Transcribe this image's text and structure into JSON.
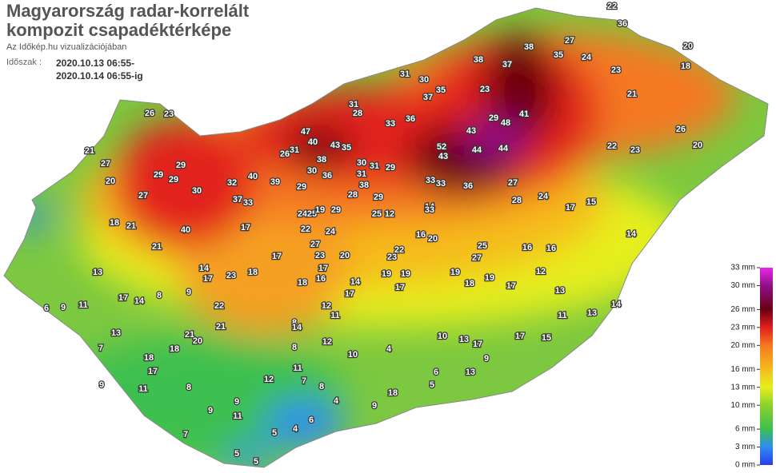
{
  "header": {
    "title_line1": "Magyarország radar-korrelált",
    "title_line2": "kompozit csapadéktérképe",
    "subtitle": "Az Időkép.hu vizualizációjában",
    "period_label": "Időszak :",
    "period_from": "2020.10.13 06:55-",
    "period_to": "2020.10.14 06:55-ig"
  },
  "legend": {
    "ticks": [
      {
        "value": 0,
        "label": "0 mm"
      },
      {
        "value": 3,
        "label": "3 mm"
      },
      {
        "value": 6,
        "label": "6 mm"
      },
      {
        "value": 10,
        "label": "10 mm"
      },
      {
        "value": 13,
        "label": "13 mm"
      },
      {
        "value": 16,
        "label": "16 mm"
      },
      {
        "value": 20,
        "label": "20 mm"
      },
      {
        "value": 23,
        "label": "23 mm"
      },
      {
        "value": 26,
        "label": "26 mm"
      },
      {
        "value": 30,
        "label": "30 mm"
      },
      {
        "value": 33,
        "label": "33 mm"
      }
    ],
    "colors": [
      "#2a3cf0",
      "#2f8cf0",
      "#3cc050",
      "#8ad22c",
      "#e6ef1c",
      "#f5bc1c",
      "#f57820",
      "#e2201c",
      "#6a0010",
      "#90108a",
      "#e828e8"
    ]
  },
  "stations": {
    "values": [
      26,
      23,
      21,
      27,
      20,
      29,
      29,
      29,
      30,
      27,
      18,
      21,
      40,
      21,
      32,
      37,
      33,
      40,
      39,
      30,
      38,
      40,
      47,
      43,
      35,
      31,
      28,
      33,
      36,
      37,
      30,
      31,
      35,
      23,
      38,
      37,
      38,
      27,
      35,
      24,
      23,
      22,
      36,
      21,
      18,
      20,
      26,
      22,
      23,
      20,
      41,
      48,
      29,
      43,
      44,
      44,
      52,
      43,
      33,
      33,
      36,
      27,
      28,
      24,
      17,
      15,
      14,
      16,
      12,
      13,
      14,
      11,
      13,
      17,
      15,
      10,
      13,
      9,
      13,
      6,
      5,
      4,
      10,
      8,
      11,
      7,
      8,
      4,
      9,
      18,
      6,
      4,
      5,
      5,
      5,
      7,
      11,
      9,
      9,
      12,
      8,
      11,
      17,
      18,
      21,
      20,
      18,
      13,
      7,
      9,
      6,
      9,
      11,
      13,
      17,
      14,
      8,
      9,
      22,
      21,
      23,
      17,
      14,
      18,
      16,
      17,
      14,
      17,
      12,
      11,
      8,
      14,
      12,
      19,
      19,
      17,
      18,
      19,
      19,
      17,
      17,
      16,
      25,
      27,
      22,
      23,
      16,
      20,
      25,
      12,
      14,
      20,
      23,
      27,
      24,
      22,
      24,
      25,
      17,
      18,
      26,
      31,
      29,
      36,
      30,
      31,
      29,
      31,
      38,
      28,
      29,
      29,
      19,
      17,
      33
    ]
  }
}
